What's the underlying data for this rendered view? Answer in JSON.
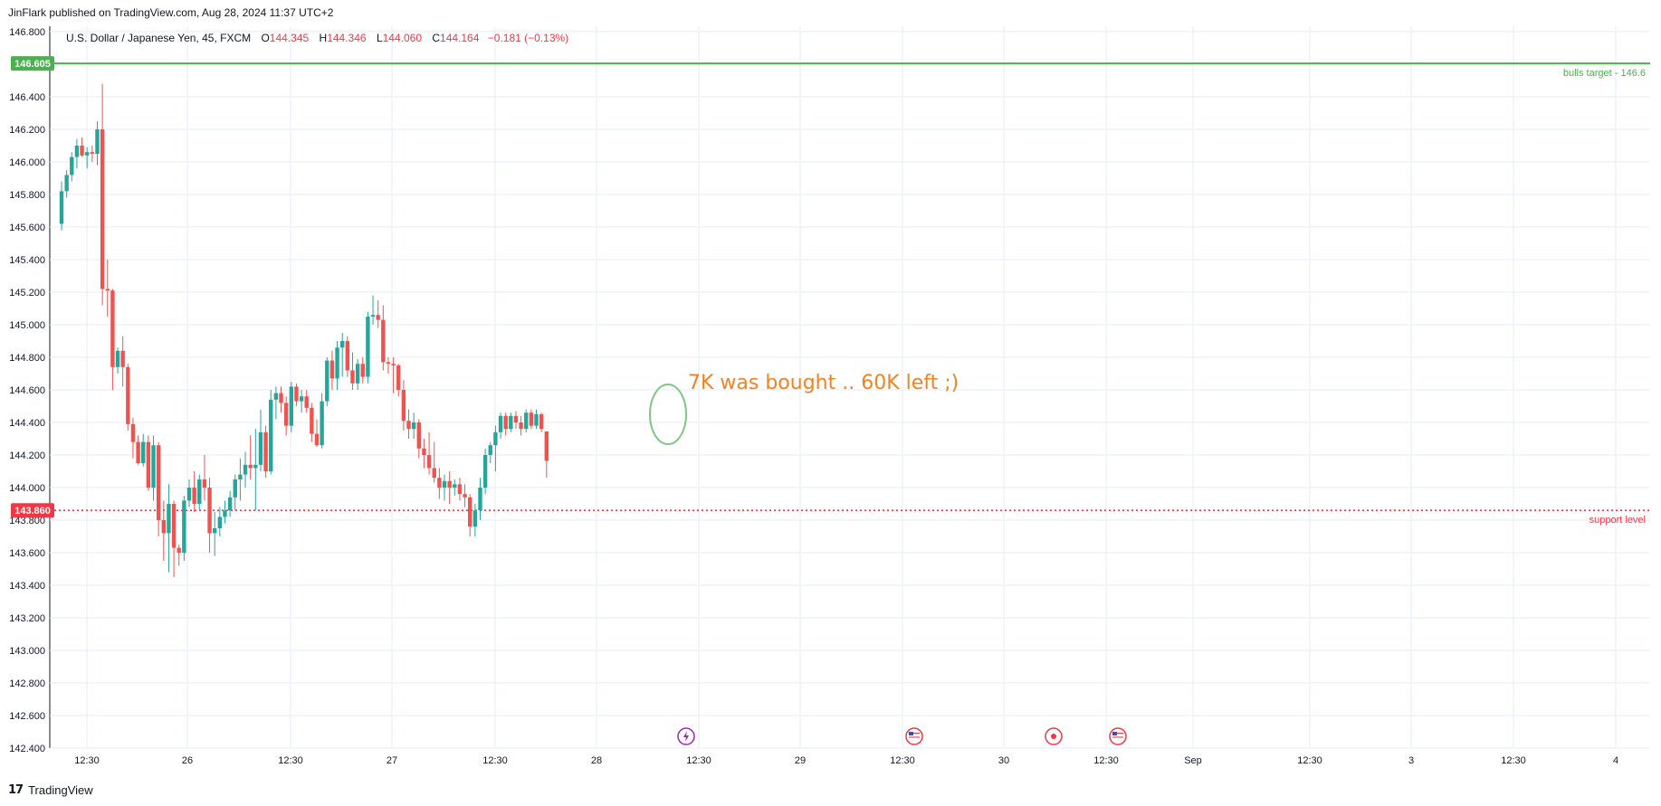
{
  "header": {
    "publisher": "JinFlark published on TradingView.com, Aug 28, 2024 11:37 UTC+2"
  },
  "legend": {
    "symbol": "U.S. Dollar / Japanese Yen, 45, FXCM",
    "open_label": "O",
    "open": "144.345",
    "high_label": "H",
    "high": "144.346",
    "low_label": "L",
    "low": "144.060",
    "close_label": "C",
    "close": "144.164",
    "change": "−0.181 (−0.13%)"
  },
  "footer": {
    "brand": "TradingView",
    "logo_icon": "tradingview-logo-icon"
  },
  "colors": {
    "up": "#26a69a",
    "down": "#ef5350",
    "target": "#4caf50",
    "support": "#f23645",
    "note": "#f5811f",
    "circle": "#81c784",
    "grid": "#e6eef5"
  },
  "chart_data": {
    "type": "candlestick",
    "ylim": [
      142.4,
      146.8
    ],
    "yticks": [
      "146.800",
      "146.400",
      "146.200",
      "146.000",
      "145.800",
      "145.600",
      "145.400",
      "145.200",
      "145.000",
      "144.800",
      "144.600",
      "144.400",
      "144.200",
      "144.000",
      "143.800",
      "143.600",
      "143.400",
      "143.200",
      "143.000",
      "142.800",
      "142.600",
      "142.400"
    ],
    "xticks": [
      "12:30",
      "26",
      "12:30",
      "27",
      "12:30",
      "28",
      "12:30",
      "29",
      "12:30",
      "30",
      "12:30",
      "Sep",
      "12:30",
      "3",
      "12:30",
      "4"
    ],
    "price_labels": [
      {
        "value": "146.605",
        "color": "#4caf50"
      },
      {
        "value": "143.860",
        "color": "#f23645"
      }
    ],
    "hlines": [
      {
        "value": 146.605,
        "label": "bulls target - 146.6",
        "style": "solid",
        "color": "#4caf50"
      },
      {
        "value": 143.86,
        "label": "support level",
        "style": "dotted",
        "color": "#f23645"
      }
    ],
    "annotation": {
      "text": "7K was bought .. 60K left ;)",
      "price": 144.68,
      "color": "#f5811f"
    },
    "events": [
      {
        "icon": "lightning-icon",
        "color": "#9c27b0",
        "time": "28 12:30"
      },
      {
        "icon": "us-flag-icon",
        "color": "#f23645",
        "time": "29 12:30"
      },
      {
        "icon": "record-icon",
        "color": "#f23645",
        "time": "30 06:30"
      },
      {
        "icon": "us-flag-icon",
        "color": "#f23645",
        "time": "30 12:30"
      }
    ],
    "candles": [
      {
        "o": 145.62,
        "h": 145.88,
        "l": 145.58,
        "c": 145.82
      },
      {
        "o": 145.82,
        "h": 145.95,
        "l": 145.78,
        "c": 145.92
      },
      {
        "o": 145.92,
        "h": 146.06,
        "l": 145.88,
        "c": 146.03
      },
      {
        "o": 146.03,
        "h": 146.14,
        "l": 145.96,
        "c": 146.1
      },
      {
        "o": 146.1,
        "h": 146.15,
        "l": 146.03,
        "c": 146.04
      },
      {
        "o": 146.04,
        "h": 146.09,
        "l": 145.96,
        "c": 146.06
      },
      {
        "o": 146.06,
        "h": 146.1,
        "l": 146.0,
        "c": 146.05
      },
      {
        "o": 146.05,
        "h": 146.25,
        "l": 145.98,
        "c": 146.2
      },
      {
        "o": 146.2,
        "h": 146.48,
        "l": 145.12,
        "c": 145.22
      },
      {
        "o": 145.22,
        "h": 145.4,
        "l": 145.05,
        "c": 145.21
      },
      {
        "o": 145.21,
        "h": 145.22,
        "l": 144.6,
        "c": 144.74
      },
      {
        "o": 144.74,
        "h": 144.86,
        "l": 144.7,
        "c": 144.84
      },
      {
        "o": 144.84,
        "h": 144.93,
        "l": 144.62,
        "c": 144.74
      },
      {
        "o": 144.74,
        "h": 144.76,
        "l": 144.35,
        "c": 144.39
      },
      {
        "o": 144.39,
        "h": 144.43,
        "l": 144.18,
        "c": 144.28
      },
      {
        "o": 144.28,
        "h": 144.32,
        "l": 144.14,
        "c": 144.15
      },
      {
        "o": 144.15,
        "h": 144.33,
        "l": 144.13,
        "c": 144.28
      },
      {
        "o": 144.28,
        "h": 144.32,
        "l": 143.98,
        "c": 144.0
      },
      {
        "o": 144.0,
        "h": 144.32,
        "l": 143.92,
        "c": 144.26
      },
      {
        "o": 144.26,
        "h": 144.28,
        "l": 143.7,
        "c": 143.8
      },
      {
        "o": 143.8,
        "h": 143.92,
        "l": 143.55,
        "c": 143.72
      },
      {
        "o": 143.72,
        "h": 144.02,
        "l": 143.48,
        "c": 143.9
      },
      {
        "o": 143.9,
        "h": 143.92,
        "l": 143.45,
        "c": 143.63
      },
      {
        "o": 143.63,
        "h": 143.65,
        "l": 143.52,
        "c": 143.6
      },
      {
        "o": 143.6,
        "h": 143.95,
        "l": 143.55,
        "c": 143.92
      },
      {
        "o": 143.92,
        "h": 144.05,
        "l": 143.88,
        "c": 144.0
      },
      {
        "o": 144.0,
        "h": 144.1,
        "l": 143.85,
        "c": 143.9
      },
      {
        "o": 143.9,
        "h": 144.08,
        "l": 143.86,
        "c": 144.05
      },
      {
        "o": 144.05,
        "h": 144.2,
        "l": 143.92,
        "c": 144.0
      },
      {
        "o": 144.0,
        "h": 144.06,
        "l": 143.6,
        "c": 143.72
      },
      {
        "o": 143.72,
        "h": 143.85,
        "l": 143.58,
        "c": 143.75
      },
      {
        "o": 143.75,
        "h": 143.88,
        "l": 143.7,
        "c": 143.82
      },
      {
        "o": 143.82,
        "h": 143.92,
        "l": 143.78,
        "c": 143.86
      },
      {
        "o": 143.86,
        "h": 143.98,
        "l": 143.82,
        "c": 143.94
      },
      {
        "o": 143.94,
        "h": 144.08,
        "l": 143.86,
        "c": 144.05
      },
      {
        "o": 144.05,
        "h": 144.18,
        "l": 143.92,
        "c": 144.08
      },
      {
        "o": 144.08,
        "h": 144.22,
        "l": 144.0,
        "c": 144.14
      },
      {
        "o": 144.14,
        "h": 144.32,
        "l": 144.05,
        "c": 144.12
      },
      {
        "o": 144.12,
        "h": 144.36,
        "l": 143.86,
        "c": 144.14
      },
      {
        "o": 144.14,
        "h": 144.48,
        "l": 144.1,
        "c": 144.34
      },
      {
        "o": 144.34,
        "h": 144.38,
        "l": 144.06,
        "c": 144.1
      },
      {
        "o": 144.1,
        "h": 144.6,
        "l": 144.08,
        "c": 144.54
      },
      {
        "o": 144.54,
        "h": 144.62,
        "l": 144.42,
        "c": 144.58
      },
      {
        "o": 144.58,
        "h": 144.62,
        "l": 144.46,
        "c": 144.52
      },
      {
        "o": 144.52,
        "h": 144.56,
        "l": 144.32,
        "c": 144.38
      },
      {
        "o": 144.38,
        "h": 144.65,
        "l": 144.34,
        "c": 144.62
      },
      {
        "o": 144.62,
        "h": 144.64,
        "l": 144.5,
        "c": 144.53
      },
      {
        "o": 144.53,
        "h": 144.6,
        "l": 144.46,
        "c": 144.56
      },
      {
        "o": 144.56,
        "h": 144.6,
        "l": 144.46,
        "c": 144.49
      },
      {
        "o": 144.49,
        "h": 144.52,
        "l": 144.28,
        "c": 144.33
      },
      {
        "o": 144.33,
        "h": 144.42,
        "l": 144.25,
        "c": 144.26
      },
      {
        "o": 144.26,
        "h": 144.58,
        "l": 144.24,
        "c": 144.53
      },
      {
        "o": 144.53,
        "h": 144.8,
        "l": 144.5,
        "c": 144.78
      },
      {
        "o": 144.78,
        "h": 144.84,
        "l": 144.6,
        "c": 144.67
      },
      {
        "o": 144.67,
        "h": 144.9,
        "l": 144.6,
        "c": 144.86
      },
      {
        "o": 144.86,
        "h": 144.95,
        "l": 144.68,
        "c": 144.9
      },
      {
        "o": 144.9,
        "h": 144.93,
        "l": 144.68,
        "c": 144.72
      },
      {
        "o": 144.72,
        "h": 144.83,
        "l": 144.6,
        "c": 144.64
      },
      {
        "o": 144.64,
        "h": 144.79,
        "l": 144.6,
        "c": 144.76
      },
      {
        "o": 144.76,
        "h": 144.8,
        "l": 144.64,
        "c": 144.68
      },
      {
        "o": 144.68,
        "h": 145.08,
        "l": 144.64,
        "c": 145.05
      },
      {
        "o": 145.05,
        "h": 145.18,
        "l": 145.0,
        "c": 145.06
      },
      {
        "o": 145.06,
        "h": 145.15,
        "l": 144.98,
        "c": 145.03
      },
      {
        "o": 145.03,
        "h": 145.12,
        "l": 144.72,
        "c": 144.77
      },
      {
        "o": 144.77,
        "h": 144.8,
        "l": 144.7,
        "c": 144.76
      },
      {
        "o": 144.76,
        "h": 144.8,
        "l": 144.58,
        "c": 144.75
      },
      {
        "o": 144.75,
        "h": 144.76,
        "l": 144.56,
        "c": 144.6
      },
      {
        "o": 144.6,
        "h": 144.66,
        "l": 144.35,
        "c": 144.41
      },
      {
        "o": 144.41,
        "h": 144.48,
        "l": 144.3,
        "c": 144.36
      },
      {
        "o": 144.36,
        "h": 144.46,
        "l": 144.3,
        "c": 144.4
      },
      {
        "o": 144.4,
        "h": 144.42,
        "l": 144.18,
        "c": 144.24
      },
      {
        "o": 144.24,
        "h": 144.3,
        "l": 144.12,
        "c": 144.2
      },
      {
        "o": 144.2,
        "h": 144.34,
        "l": 144.08,
        "c": 144.12
      },
      {
        "o": 144.12,
        "h": 144.28,
        "l": 144.03,
        "c": 144.06
      },
      {
        "o": 144.06,
        "h": 144.12,
        "l": 143.93,
        "c": 144.0
      },
      {
        "o": 144.0,
        "h": 144.08,
        "l": 143.92,
        "c": 144.04
      },
      {
        "o": 144.04,
        "h": 144.1,
        "l": 143.9,
        "c": 144.0
      },
      {
        "o": 144.0,
        "h": 144.05,
        "l": 143.95,
        "c": 144.02
      },
      {
        "o": 144.02,
        "h": 144.06,
        "l": 143.92,
        "c": 143.96
      },
      {
        "o": 143.96,
        "h": 144.02,
        "l": 143.88,
        "c": 143.94
      },
      {
        "o": 143.94,
        "h": 143.96,
        "l": 143.7,
        "c": 143.76
      },
      {
        "o": 143.76,
        "h": 143.9,
        "l": 143.7,
        "c": 143.86
      },
      {
        "o": 143.86,
        "h": 144.06,
        "l": 143.8,
        "c": 144.0
      },
      {
        "o": 144.0,
        "h": 144.24,
        "l": 143.96,
        "c": 144.2
      },
      {
        "o": 144.2,
        "h": 144.28,
        "l": 144.15,
        "c": 144.26
      },
      {
        "o": 144.26,
        "h": 144.38,
        "l": 144.1,
        "c": 144.34
      },
      {
        "o": 144.34,
        "h": 144.46,
        "l": 144.3,
        "c": 144.44
      },
      {
        "o": 144.44,
        "h": 144.46,
        "l": 144.32,
        "c": 144.36
      },
      {
        "o": 144.36,
        "h": 144.46,
        "l": 144.34,
        "c": 144.44
      },
      {
        "o": 144.44,
        "h": 144.47,
        "l": 144.36,
        "c": 144.4
      },
      {
        "o": 144.4,
        "h": 144.44,
        "l": 144.32,
        "c": 144.36
      },
      {
        "o": 144.36,
        "h": 144.48,
        "l": 144.34,
        "c": 144.46
      },
      {
        "o": 144.46,
        "h": 144.48,
        "l": 144.36,
        "c": 144.38
      },
      {
        "o": 144.38,
        "h": 144.48,
        "l": 144.36,
        "c": 144.45
      },
      {
        "o": 144.45,
        "h": 144.46,
        "l": 144.34,
        "c": 144.36
      },
      {
        "o": 144.345,
        "h": 144.346,
        "l": 144.06,
        "c": 144.164
      }
    ]
  }
}
